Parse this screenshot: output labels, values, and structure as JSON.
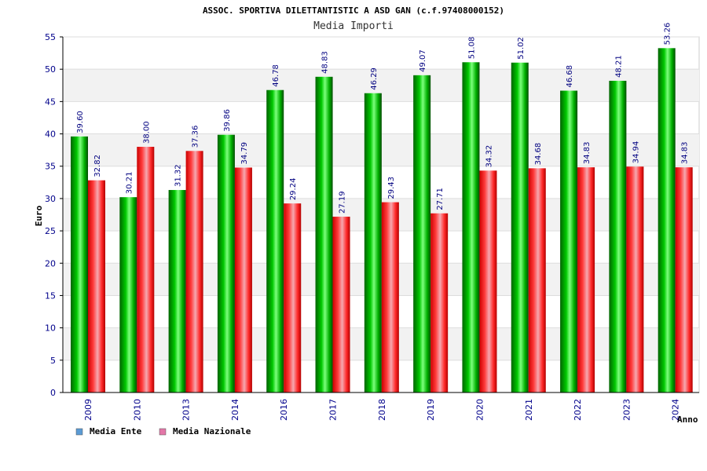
{
  "chart_data": {
    "type": "bar",
    "title": "ASSOC. SPORTIVA DILETTANTISTIC A ASD GAN (c.f.97408000152)",
    "subtitle": "Media Importi",
    "xlabel": "Anno",
    "ylabel": "Euro",
    "ylim": [
      0,
      55
    ],
    "yticks": [
      0,
      5,
      10,
      15,
      20,
      25,
      30,
      35,
      40,
      45,
      50,
      55
    ],
    "grid": true,
    "legend_position": "bottom-left",
    "categories": [
      "2009",
      "2010",
      "2013",
      "2014",
      "2016",
      "2017",
      "2018",
      "2019",
      "2020",
      "2021",
      "2022",
      "2023",
      "2024"
    ],
    "series": [
      {
        "name": "Media Ente",
        "legend_color": "#5b9bd5",
        "bar_color": "#00b000",
        "values": [
          39.6,
          30.21,
          31.32,
          39.86,
          46.78,
          48.83,
          46.29,
          49.07,
          51.08,
          51.02,
          46.68,
          48.21,
          53.26
        ],
        "labels": [
          "39.60",
          "30.21",
          "31.32",
          "39.86",
          "46.78",
          "48.83",
          "46.29",
          "49.07",
          "51.08",
          "51.02",
          "46.68",
          "48.21",
          "53.26"
        ]
      },
      {
        "name": "Media Nazionale",
        "legend_color": "#e377a8",
        "bar_color": "#e8182c",
        "values": [
          32.82,
          38.0,
          37.36,
          34.79,
          29.24,
          27.19,
          29.43,
          27.71,
          34.32,
          34.68,
          34.83,
          34.94,
          34.83
        ],
        "labels": [
          "32.82",
          "38.00",
          "37.36",
          "34.79",
          "29.24",
          "27.19",
          "29.43",
          "27.71",
          "34.32",
          "34.68",
          "34.83",
          "34.94",
          "34.83"
        ]
      }
    ]
  }
}
